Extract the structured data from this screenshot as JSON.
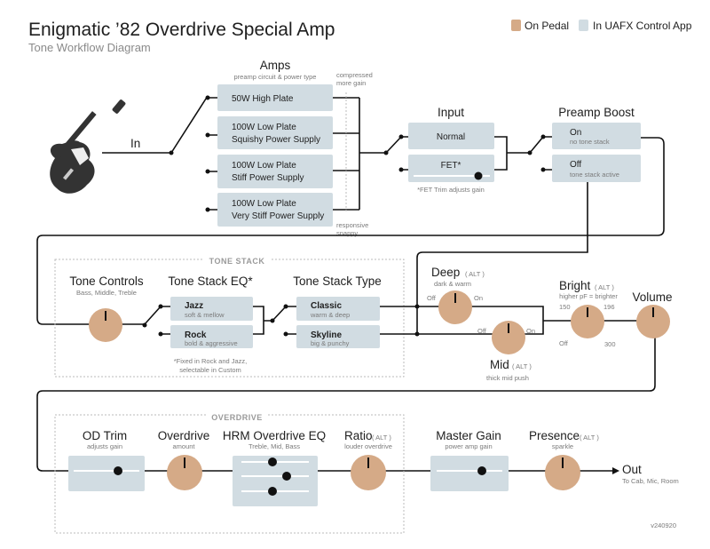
{
  "header": {
    "title": "Enigmatic ’82 Overdrive Special Amp",
    "subtitle": "Tone Workflow Diagram"
  },
  "legend": [
    {
      "label": "On Pedal",
      "color": "#d5aa87"
    },
    {
      "label": "In UAFX Control App",
      "color": "#d1dce2"
    }
  ],
  "input_label": "In",
  "amps": {
    "title": "Amps",
    "subtitle": "preamp circuit & power type",
    "top_note": [
      "compressed",
      "more gain"
    ],
    "bottom_note": [
      "responsive",
      "snappy"
    ],
    "options": [
      [
        "50W High Plate"
      ],
      [
        "100W Low Plate",
        "Squishy Power Supply"
      ],
      [
        "100W Low Plate",
        "Stiff Power Supply"
      ],
      [
        "100W Low Plate",
        "Very Stiff Power Supply"
      ]
    ]
  },
  "input": {
    "title": "Input",
    "options": [
      "Normal",
      "FET*"
    ],
    "note": "*FET Trim adjusts gain",
    "fet_trim": 0.85
  },
  "preamp_boost": {
    "title": "Preamp Boost",
    "options": [
      {
        "label": "On",
        "sub": "no tone stack"
      },
      {
        "label": "Off",
        "sub": "tone stack active"
      }
    ]
  },
  "tone_stack": {
    "section": "TONE STACK",
    "tone_controls": {
      "title": "Tone Controls",
      "sub": "Bass, Middle, Treble"
    },
    "eq": {
      "title": "Tone Stack EQ*",
      "options": [
        {
          "label": "Jazz",
          "sub": "soft & mellow"
        },
        {
          "label": "Rock",
          "sub": "bold & aggressive"
        }
      ],
      "note": [
        "*Fixed in Rock and Jazz,",
        "selectable in Custom"
      ]
    },
    "type": {
      "title": "Tone Stack Type",
      "options": [
        {
          "label": "Classic",
          "sub": "warm & deep"
        },
        {
          "label": "Skyline",
          "sub": "big & punchy"
        }
      ]
    }
  },
  "deep": {
    "title": "Deep",
    "alt": "( ALT )",
    "sub": "dark & warm",
    "off": "Off",
    "on": "On"
  },
  "mid": {
    "title": "Mid",
    "alt": "( ALT )",
    "sub": "thick mid push",
    "off": "Off",
    "on": "On"
  },
  "bright": {
    "title": "Bright",
    "alt": "( ALT )",
    "sub": "higher pF = brighter",
    "ticks": [
      "150",
      "196",
      "Off",
      "300"
    ]
  },
  "volume": {
    "title": "Volume"
  },
  "overdrive": {
    "section": "OVERDRIVE",
    "od_trim": {
      "title": "OD Trim",
      "sub": "adjusts gain",
      "value": 0.7
    },
    "overdrive": {
      "title": "Overdrive",
      "sub": "amount"
    },
    "hrm": {
      "title": "HRM Overdrive EQ",
      "sub": "Treble, Mid, Bass",
      "values": [
        0.45,
        0.65,
        0.45
      ]
    },
    "ratio": {
      "title": "Ratio",
      "alt": "( ALT )",
      "sub": "louder overdrive"
    }
  },
  "master_gain": {
    "title": "Master Gain",
    "sub": "power amp gain",
    "value": 0.75
  },
  "presence": {
    "title": "Presence",
    "alt": "( ALT )",
    "sub": "sparkle"
  },
  "output": {
    "title": "Out",
    "sub": "To Cab, Mic, Room"
  },
  "version": "v240920"
}
